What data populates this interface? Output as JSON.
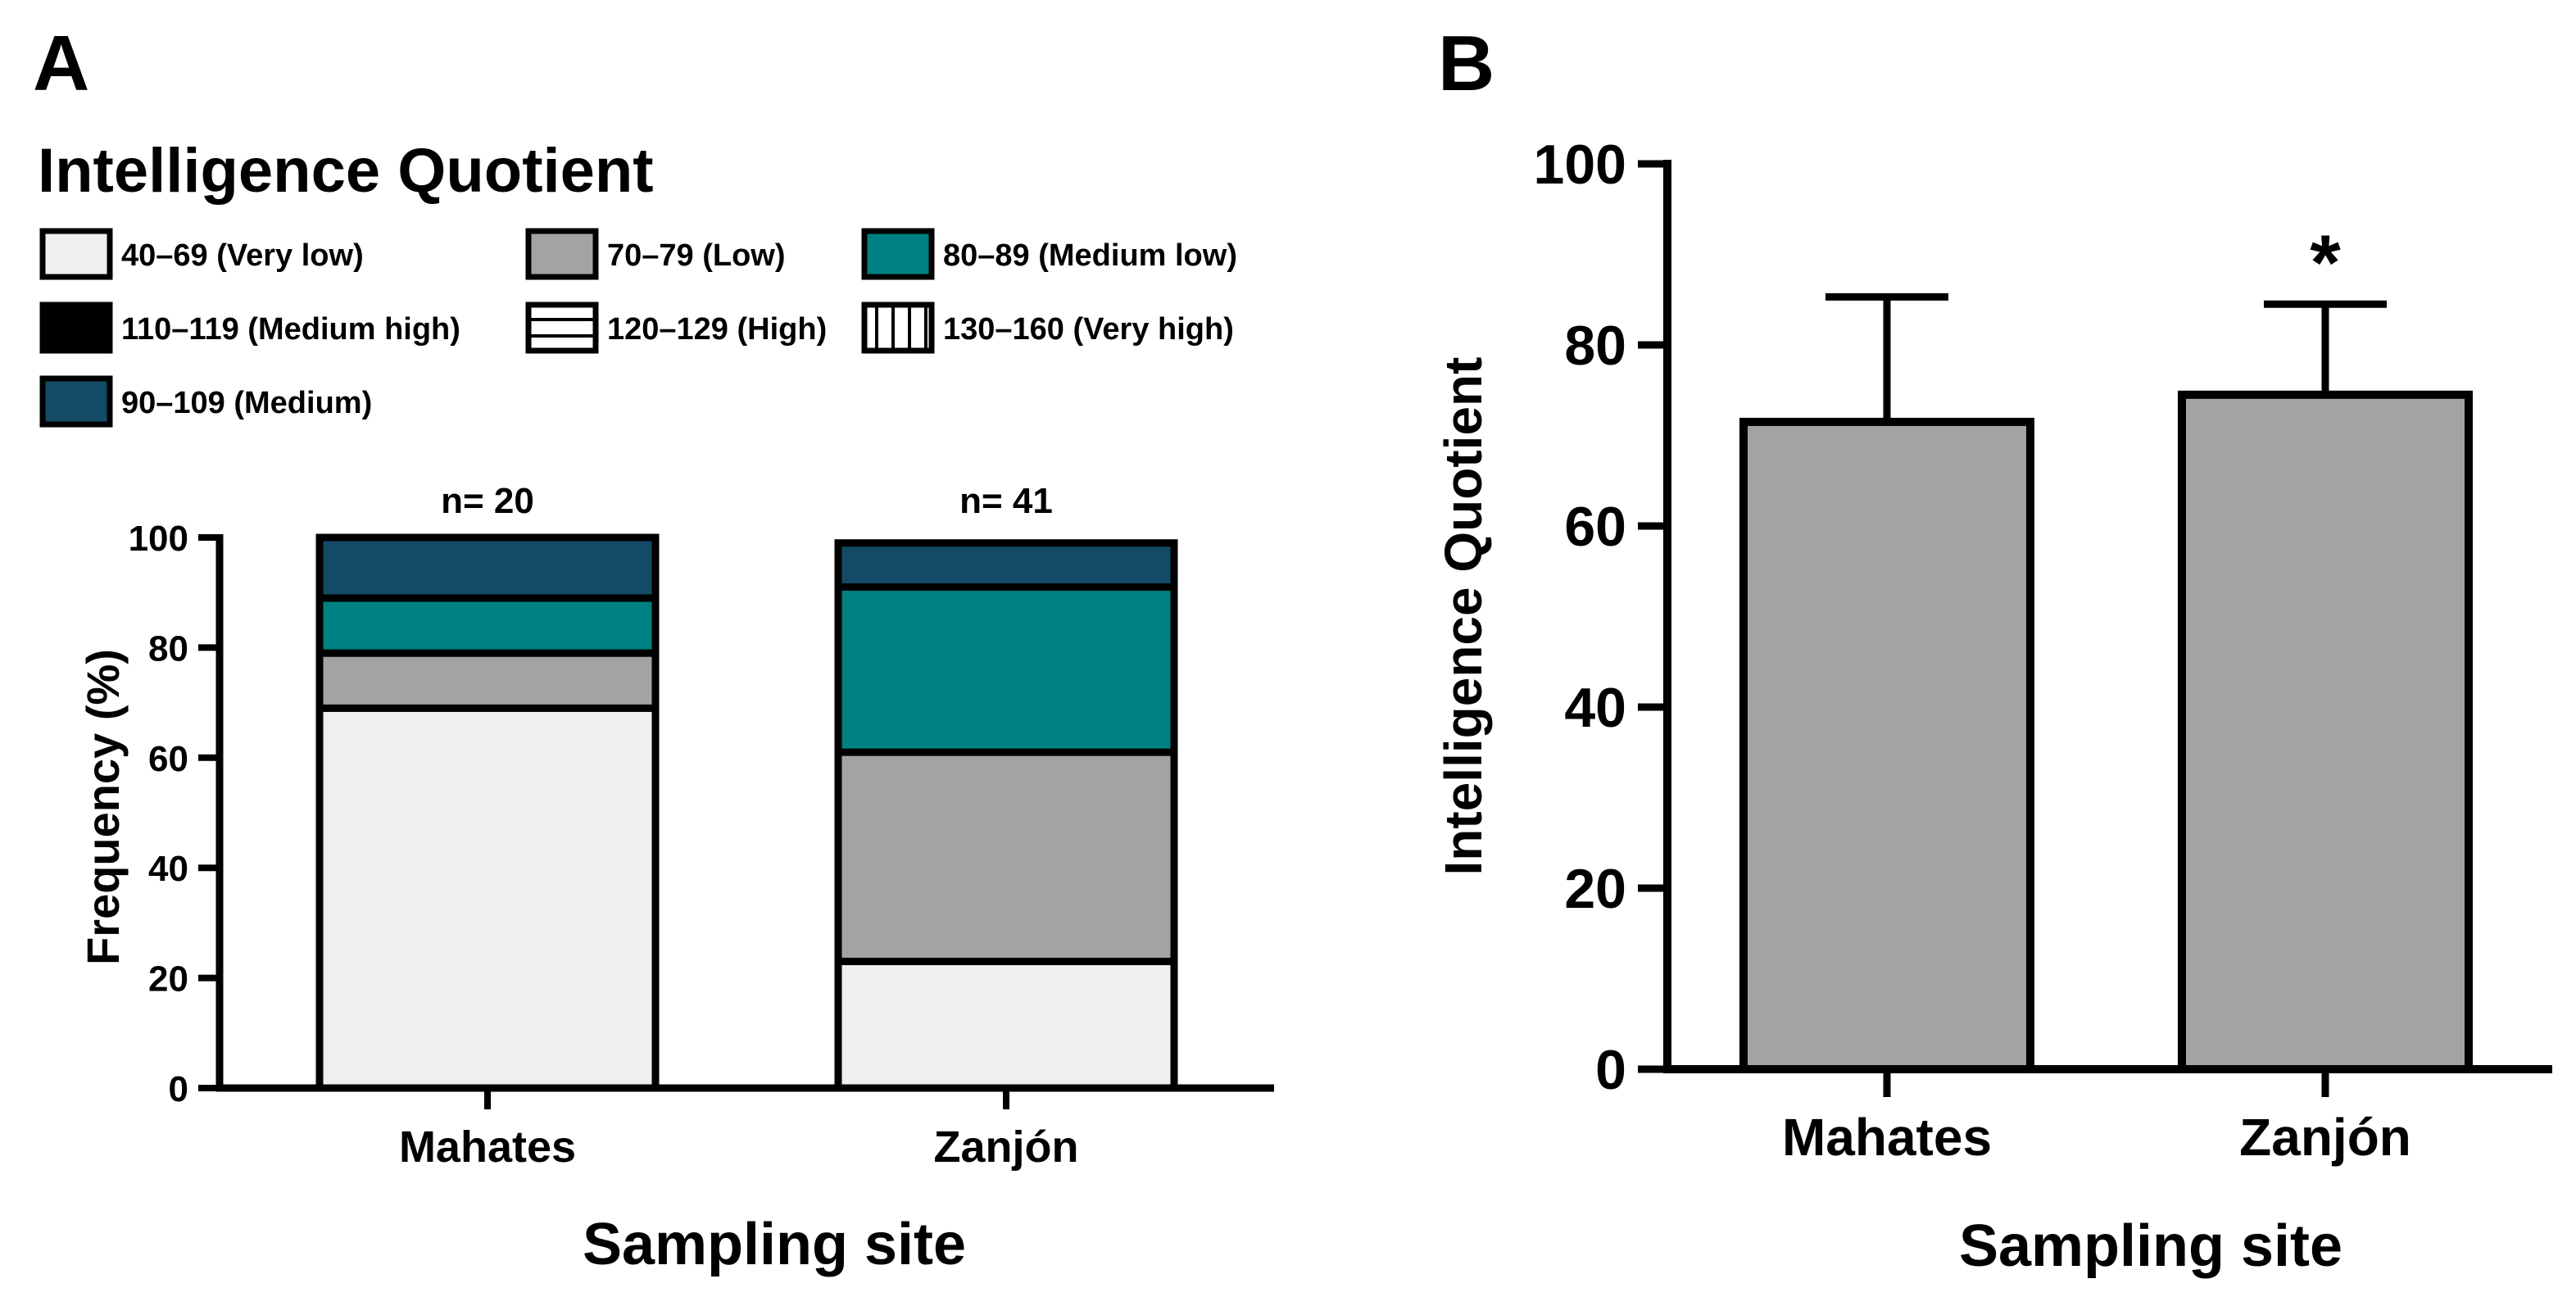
{
  "chart_data": [
    {
      "panel": "A",
      "type": "bar",
      "stacked": true,
      "title": "Intelligence Quotient",
      "xlabel": "Sampling site",
      "ylabel": "Frequency (%)",
      "ylim": [
        0,
        100
      ],
      "yticks": [
        0,
        20,
        40,
        60,
        80,
        100
      ],
      "categories": [
        "Mahates",
        "Zanjón"
      ],
      "annotations": [
        "n= 20",
        "n= 41"
      ],
      "legend_placement": "top",
      "series": [
        {
          "name": "40–69 (Very low)",
          "color": "#efefef",
          "pattern": "none",
          "values": [
            69,
            23
          ]
        },
        {
          "name": "70–79 (Low)",
          "color": "#a3a3a3",
          "pattern": "none",
          "values": [
            10,
            38
          ]
        },
        {
          "name": "80–89 (Medium low)",
          "color": "#008080",
          "pattern": "none",
          "values": [
            10,
            30
          ]
        },
        {
          "name": "90–109 (Medium)",
          "color": "#134b66",
          "pattern": "none",
          "values": [
            11,
            8
          ]
        },
        {
          "name": "110–119 (Medium high)",
          "color": "#000000",
          "pattern": "none",
          "values": [
            0,
            0
          ]
        },
        {
          "name": "120–129 (High)",
          "color": "#ffffff",
          "pattern": "horizontal",
          "values": [
            0,
            0
          ]
        },
        {
          "name": "130–160 (Very high)",
          "color": "#ffffff",
          "pattern": "vertical",
          "values": [
            0,
            0
          ]
        }
      ],
      "legend_order": [
        0,
        1,
        2,
        4,
        5,
        6,
        3
      ]
    },
    {
      "panel": "B",
      "type": "bar",
      "xlabel": "Sampling site",
      "ylabel": "Intelligence Quotient",
      "ylim": [
        0,
        100
      ],
      "yticks": [
        0,
        20,
        40,
        60,
        80,
        100
      ],
      "categories": [
        "Mahates",
        "Zanjón"
      ],
      "values": [
        71.5,
        74.5
      ],
      "errors": [
        13.8,
        10.0
      ],
      "bar_color": "#a3a3a3",
      "significance": [
        "",
        "*"
      ]
    }
  ]
}
